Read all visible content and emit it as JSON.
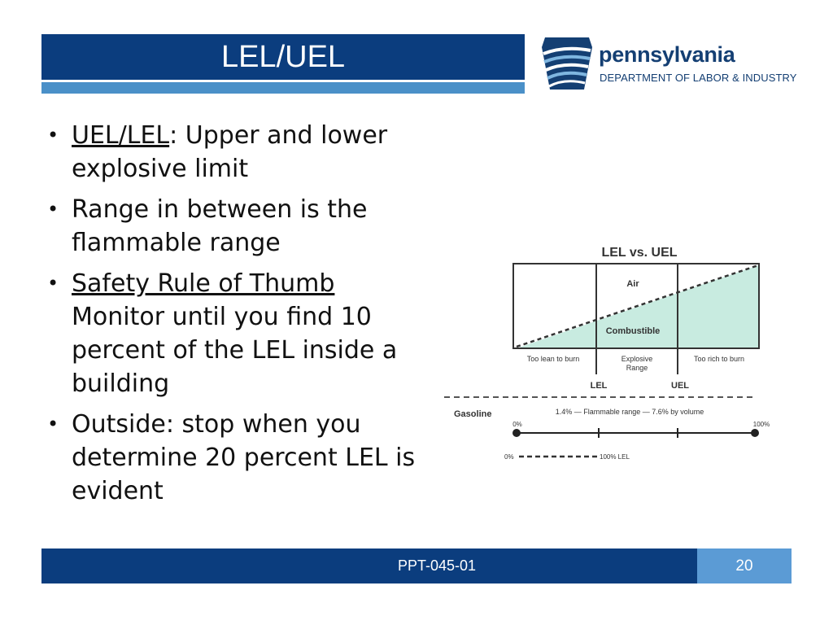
{
  "slide": {
    "title": "LEL/UEL",
    "footer_code": "PPT-045-01",
    "page_number": "20"
  },
  "logo": {
    "name": "pennsylvania",
    "department": "DEPARTMENT OF LABOR & INDUSTRY",
    "colors": {
      "primary": "#143f73",
      "accent": "#4a90c8"
    }
  },
  "bullets": [
    {
      "lead": "UEL/LEL",
      "rest": ": Upper and lower explosive limit"
    },
    {
      "text": "Range in between is  the flammable range"
    },
    {
      "lead": "Safety Rule of Thumb",
      "rest": " Monitor until you find 10 percent of the LEL inside a building"
    },
    {
      "text": "Outside: stop when you determine 20 percent LEL is evident"
    }
  ],
  "diagram": {
    "title": "LEL vs. UEL",
    "zone_upper": "Air",
    "zone_lower": "Combustible",
    "regions": [
      "Too lean to burn",
      "Explosive Range",
      "Too rich to burn"
    ],
    "marker_left": "LEL",
    "marker_right": "UEL",
    "gasoline_label": "Gasoline",
    "range_text": "1.4% — Flammable range — 7.6% by volume",
    "scale_start": "0%",
    "scale_end": "100%",
    "lel_scale_start": "0%",
    "lel_scale_end": "100% LEL",
    "colors": {
      "fill": "#c8ebe0",
      "stroke": "#333333"
    }
  }
}
